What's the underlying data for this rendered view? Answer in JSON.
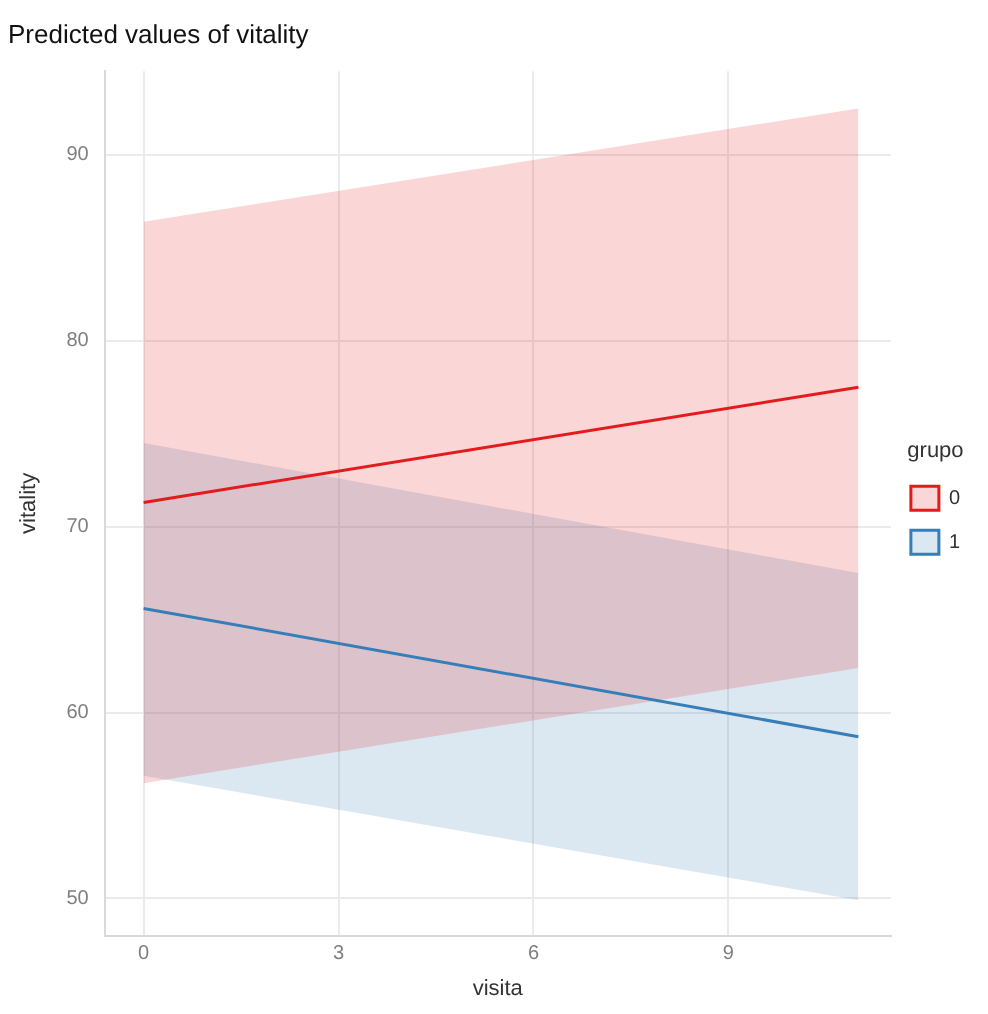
{
  "chart_data": {
    "type": "line",
    "title": "Predicted values of vitality",
    "xlabel": "visita",
    "ylabel": "vitality",
    "legend_title": "grupo",
    "x": [
      0,
      11
    ],
    "series": [
      {
        "name": "0",
        "color": "#e41a1c",
        "values": [
          71.3,
          77.5
        ],
        "lower": [
          56.2,
          62.4
        ],
        "upper": [
          86.4,
          92.5
        ]
      },
      {
        "name": "1",
        "color": "#377eb8",
        "values": [
          65.6,
          58.7
        ],
        "lower": [
          56.6,
          49.9
        ],
        "upper": [
          74.5,
          67.5
        ]
      }
    ],
    "xlim": [
      -0.6,
      11.5
    ],
    "xticks": [
      0,
      3,
      6,
      9
    ],
    "ylim": [
      48,
      94.5
    ],
    "yticks": [
      50,
      60,
      70,
      80,
      90
    ],
    "grid": true,
    "legend": "right",
    "marker": "none",
    "line_style": "solid"
  }
}
